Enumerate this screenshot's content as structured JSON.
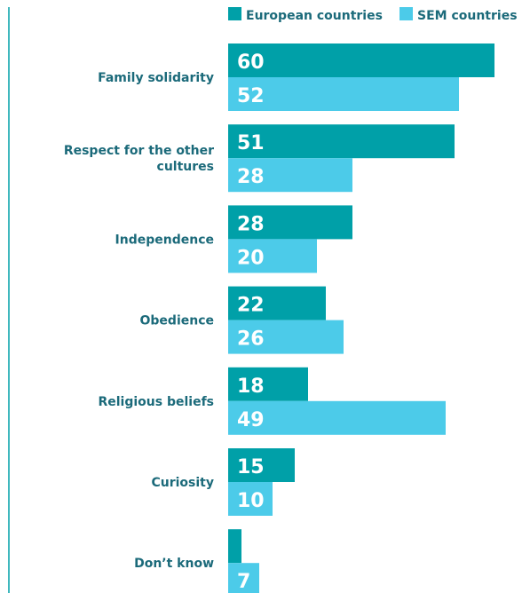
{
  "chart_data": {
    "type": "bar",
    "orientation": "horizontal",
    "title": "",
    "xlabel": "",
    "ylabel": "",
    "xlim": [
      0,
      62
    ],
    "grid": false,
    "legend_position": "top-right",
    "categories": [
      [
        "Family solidarity"
      ],
      [
        "Respect for the other",
        "cultures"
      ],
      [
        "Independence"
      ],
      [
        "Obedience"
      ],
      [
        "Religious beliefs"
      ],
      [
        "Curiosity"
      ],
      [
        "Don’t know"
      ]
    ],
    "series": [
      {
        "name": "European countries",
        "color": "#00a0a8",
        "values": [
          60,
          51,
          28,
          22,
          18,
          15,
          3
        ],
        "labels": [
          "60",
          "51",
          "28",
          "22",
          "18",
          "15",
          ""
        ]
      },
      {
        "name": "SEM countries",
        "color": "#4ccbe9",
        "values": [
          52,
          28,
          20,
          26,
          49,
          10,
          7
        ],
        "labels": [
          "52",
          "28",
          "20",
          "26",
          "49",
          "10",
          "7"
        ]
      }
    ],
    "axis_line_color": "#00a0a8",
    "label_color": "#1b6a7a"
  }
}
